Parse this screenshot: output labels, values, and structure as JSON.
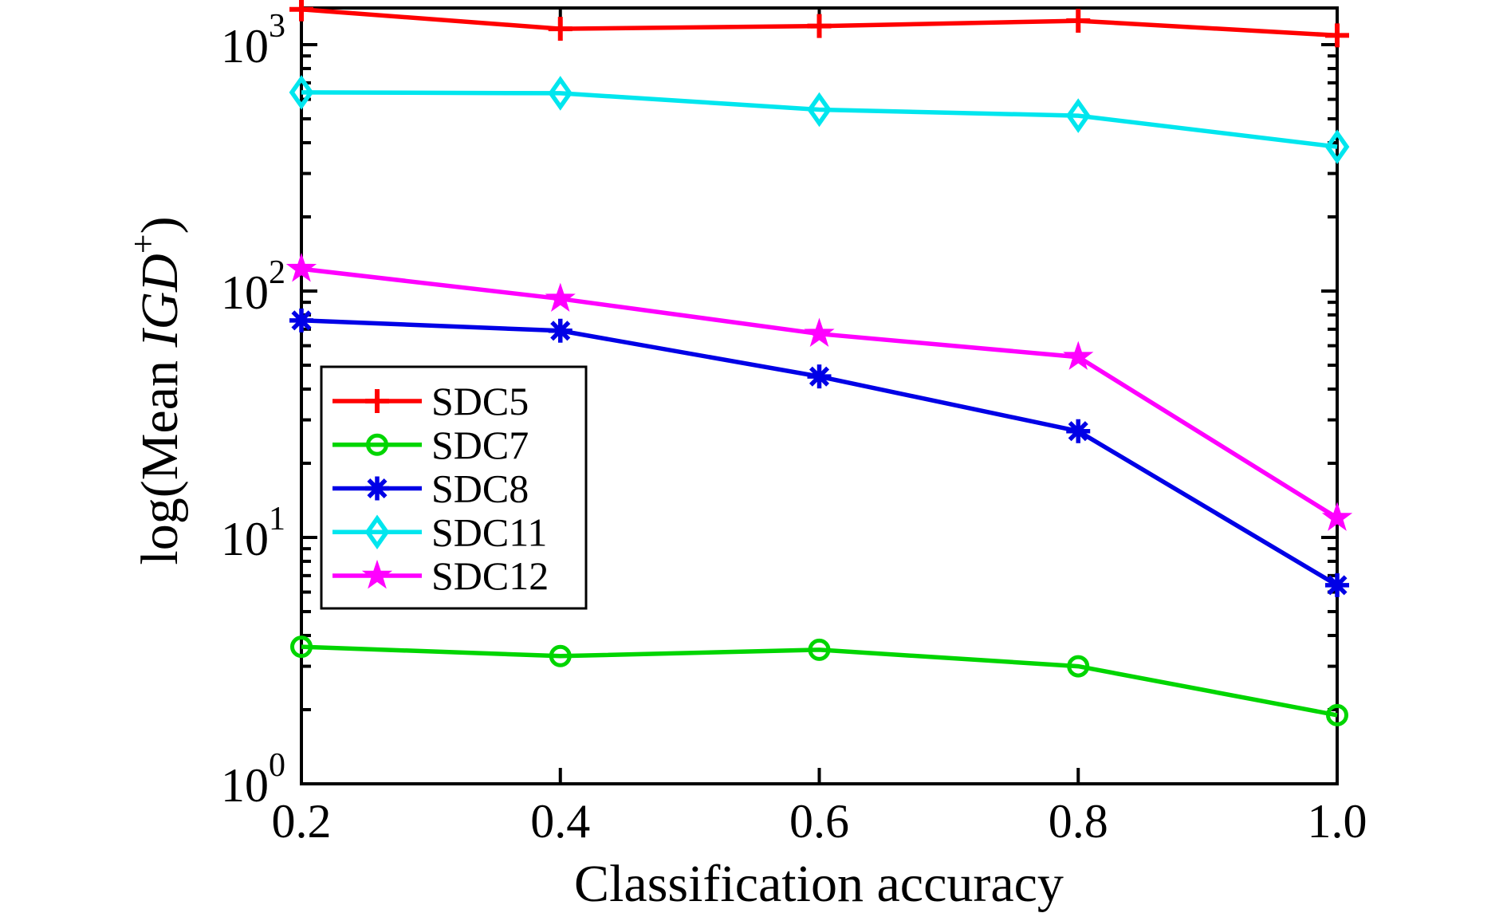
{
  "chart_data": {
    "type": "line",
    "title": "",
    "xlabel": "Classification accuracy",
    "ylabel_text": "log(Mean IGD+)",
    "ylabel_parts": {
      "prefix": "log(Mean ",
      "italic": "IGD",
      "sup": "+",
      "suffix": ")"
    },
    "x": [
      0.2,
      0.4,
      0.6,
      0.8,
      1.0
    ],
    "x_tick_labels": [
      "0.2",
      "0.4",
      "0.6",
      "0.8",
      "1.0"
    ],
    "xlim": [
      0.2,
      1.0
    ],
    "y_axis": {
      "scale": "log",
      "tick_base": "10",
      "tick_exponents": [
        0,
        1,
        2,
        3
      ],
      "minor_tick_multiples": [
        2,
        3,
        4,
        5,
        6,
        7,
        8,
        9
      ],
      "ylim": [
        1,
        1410
      ]
    },
    "grid": false,
    "axis_color": "#000000",
    "legend": {
      "position": "inside-left-middle",
      "border_color": "#000000",
      "background": "#ffffff"
    },
    "series": [
      {
        "name": "SDC5",
        "color": "#ff0000",
        "marker": "plus",
        "values": [
          1390,
          1160,
          1190,
          1250,
          1090
        ]
      },
      {
        "name": "SDC7",
        "color": "#00d500",
        "marker": "circle",
        "values": [
          3.6,
          3.3,
          3.5,
          3.0,
          1.9
        ]
      },
      {
        "name": "SDC8",
        "color": "#0000e6",
        "marker": "asterisk",
        "values": [
          76,
          69,
          45,
          27,
          6.4
        ]
      },
      {
        "name": "SDC11",
        "color": "#00e6ee",
        "marker": "diamond",
        "values": [
          640,
          635,
          545,
          515,
          385
        ]
      },
      {
        "name": "SDC12",
        "color": "#ff00ff",
        "marker": "star",
        "values": [
          123,
          93,
          67,
          54,
          12
        ]
      }
    ]
  }
}
